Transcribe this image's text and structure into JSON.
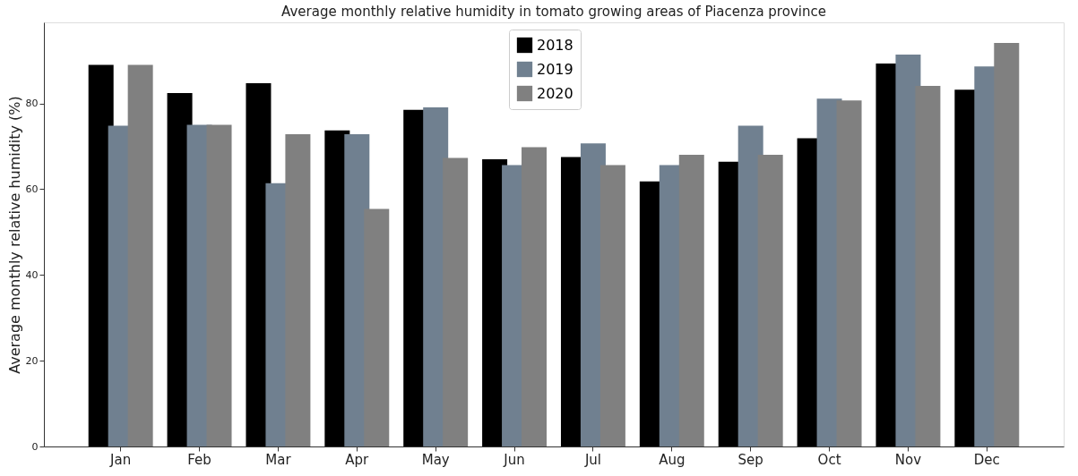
{
  "chart_data": {
    "type": "bar",
    "title": "Average monthly relative humidity in tomato growing areas of Piacenza province",
    "ylabel": "Average monthly relative humidity (%)",
    "categories": [
      "Jan",
      "Feb",
      "Mar",
      "Apr",
      "May",
      "Jun",
      "Jul",
      "Aug",
      "Sep",
      "Oct",
      "Nov",
      "Dec"
    ],
    "series": [
      {
        "name": "2018",
        "color": "#000000",
        "values": [
          89.0,
          82.4,
          84.7,
          73.7,
          78.5,
          67.0,
          67.5,
          61.8,
          66.4,
          71.9,
          89.3,
          83.2
        ]
      },
      {
        "name": "2019",
        "color": "#708090",
        "values": [
          74.8,
          75.0,
          61.4,
          72.8,
          79.1,
          65.6,
          70.7,
          65.6,
          74.8,
          81.1,
          91.4,
          88.6
        ]
      },
      {
        "name": "2020",
        "color": "#808080",
        "values": [
          89.0,
          75.0,
          72.8,
          55.4,
          67.3,
          69.8,
          65.6,
          68.0,
          68.0,
          80.7,
          84.1,
          94.1
        ]
      }
    ],
    "ylim": [
      0,
      98.9
    ],
    "yticks": [
      0,
      20,
      40,
      60,
      80
    ],
    "grid": false,
    "legend": "top"
  }
}
